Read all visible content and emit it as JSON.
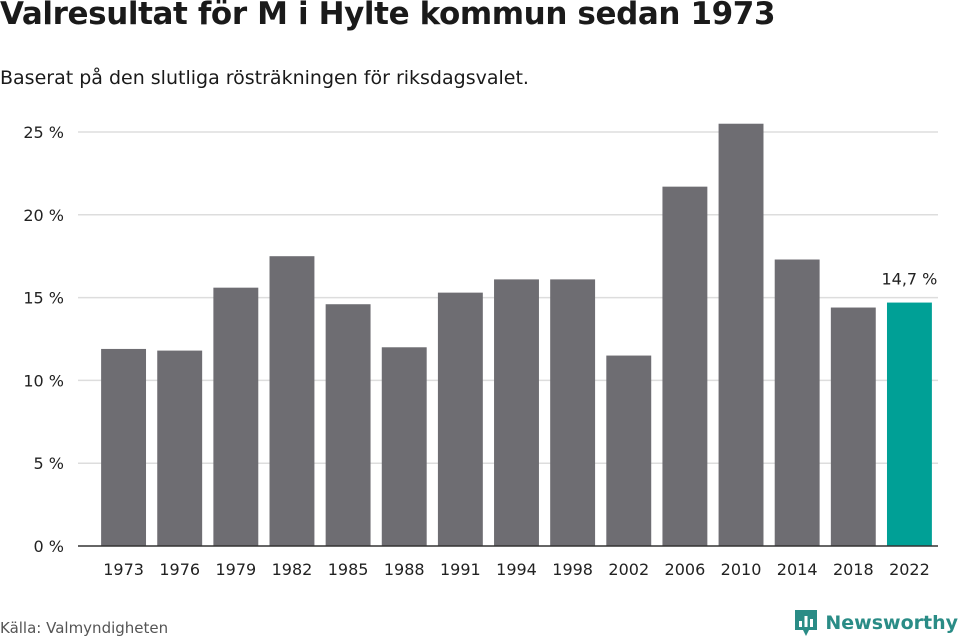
{
  "header": {
    "title": "Valresultat för M i Hylte kommun sedan 1973",
    "subtitle": "Baserat på den slutliga rösträkningen för riksdagsvalet."
  },
  "footer": {
    "source": "Källa: Valmyndigheten",
    "brand": "Newsworthy",
    "brand_icon": "newsworthy-logo-icon"
  },
  "colors": {
    "bar": "#6e6d72",
    "highlight": "#00a096",
    "grid": "#dddddd",
    "axis": "#333333",
    "brand": "#2a8c86"
  },
  "chart_data": {
    "type": "bar",
    "categories": [
      "1973",
      "1976",
      "1979",
      "1982",
      "1985",
      "1988",
      "1991",
      "1994",
      "1998",
      "2002",
      "2006",
      "2010",
      "2014",
      "2018",
      "2022"
    ],
    "values": [
      11.9,
      11.8,
      15.6,
      17.5,
      14.6,
      12.0,
      15.3,
      16.1,
      16.1,
      11.5,
      21.7,
      25.5,
      17.3,
      14.4,
      14.7
    ],
    "unit": "%",
    "ylim": [
      0,
      25
    ],
    "yticks": [
      {
        "value": 0,
        "label": "0 %"
      },
      {
        "value": 5,
        "label": "5 %"
      },
      {
        "value": 10,
        "label": "10 %"
      },
      {
        "value": 15,
        "label": "15 %"
      },
      {
        "value": 20,
        "label": "20 %"
      },
      {
        "value": 25,
        "label": "25 %"
      }
    ],
    "grid": true,
    "highlight_category": "2022",
    "annotation": {
      "category": "2022",
      "label": "14,7 %"
    },
    "xlabel": "",
    "ylabel": ""
  }
}
